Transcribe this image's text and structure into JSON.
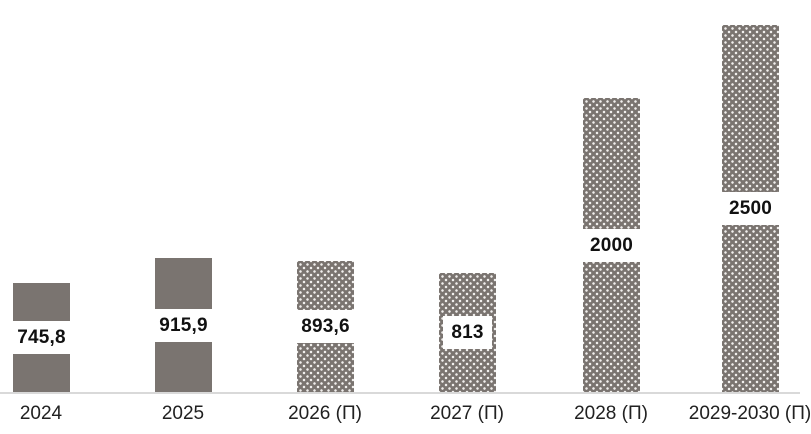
{
  "chart_data": {
    "type": "bar",
    "title": "",
    "categories": [
      "2024",
      "2025",
      "2026 (П)",
      "2027 (П)",
      "2028 (П)",
      "2029-2030 (П)"
    ],
    "values": [
      745.8,
      915.9,
      893.6,
      813,
      2000,
      2500
    ],
    "value_labels": [
      "745,8",
      "915,9",
      "893,6",
      "813",
      "2000",
      "2500"
    ],
    "is_forecast_pattern": [
      false,
      false,
      true,
      true,
      true,
      true
    ],
    "ylim": [
      0,
      2670
    ],
    "grid": false,
    "legend": "none",
    "y_axis": "hidden",
    "value_label_position": "inside-center-on-white-band",
    "colors": {
      "background": "#ffffff",
      "bar_fill": "#7a7470",
      "pattern_dots": "#f1efed",
      "axis_line": "#d9d9d9",
      "value_label_text": "#111111",
      "value_label_bg": "#ffffff",
      "axis_label_text": "#212121"
    }
  }
}
